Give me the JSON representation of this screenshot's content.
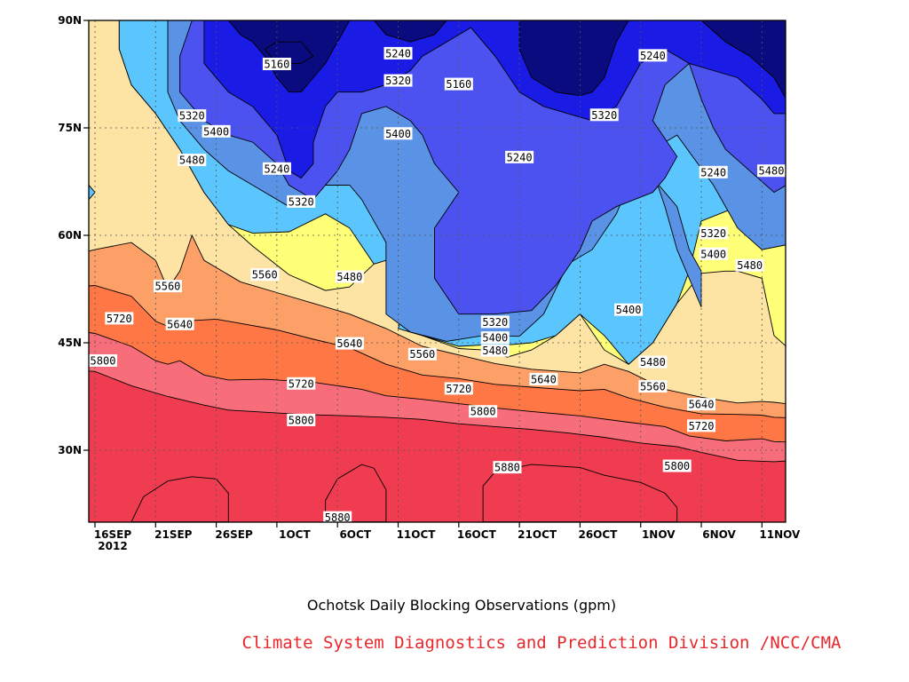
{
  "chart_data": {
    "type": "contour",
    "title": "",
    "xlabel": "Ochotsk Daily Blocking Observations (gpm)",
    "credit": "Climate System Diagnostics and Prediction Division /NCC/CMA",
    "x_ticks": [
      "16SEP",
      "21SEP",
      "26SEP",
      "1OCT",
      "6OCT",
      "11OCT",
      "16OCT",
      "21OCT",
      "26OCT",
      "1NOV",
      "6NOV",
      "11NOV"
    ],
    "x_tick_year": "2012",
    "x_range": [
      "2012-09-16",
      "2012-11-11"
    ],
    "y_ticks": [
      "90N",
      "75N",
      "60N",
      "45N",
      "30N"
    ],
    "y_tick_values": [
      90,
      75,
      60,
      45,
      30
    ],
    "y_range": [
      20,
      90
    ],
    "grid": true,
    "levels": [
      5160,
      5240,
      5320,
      5400,
      5480,
      5560,
      5640,
      5720,
      5800,
      5880
    ],
    "level_colors": {
      "above_5880": "#f03c50",
      "5800_5880": "#f76e7a",
      "5720_5800": "#ff7744",
      "5640_5720": "#fda068",
      "5560_5640": "#fde4a4",
      "5480_5560": "#ffff78",
      "5400_5480": "#5bc5fd",
      "5320_5400": "#5a92e6",
      "5240_5320": "#4c52f0",
      "5160_5240": "#1b1be6",
      "below_5160": "#0b0b80"
    },
    "contour_labels": [
      {
        "text": "5160",
        "date": "2012-10-01",
        "lat": 83.8
      },
      {
        "text": "5240",
        "date": "2012-10-11",
        "lat": 85.3
      },
      {
        "text": "5320",
        "date": "2012-10-11",
        "lat": 81.5
      },
      {
        "text": "5160",
        "date": "2012-10-16",
        "lat": 81.0
      },
      {
        "text": "5240",
        "date": "2012-11-01",
        "lat": 85.0
      },
      {
        "text": "5320",
        "date": "2012-09-24",
        "lat": 76.6
      },
      {
        "text": "5400",
        "date": "2012-09-26",
        "lat": 74.4
      },
      {
        "text": "5320",
        "date": "2012-10-28",
        "lat": 76.7
      },
      {
        "text": "5400",
        "date": "2012-10-11",
        "lat": 74.1
      },
      {
        "text": "5480",
        "date": "2012-09-24",
        "lat": 70.4
      },
      {
        "text": "5240",
        "date": "2012-10-01",
        "lat": 69.2
      },
      {
        "text": "5240",
        "date": "2012-10-21",
        "lat": 70.8
      },
      {
        "text": "5240",
        "date": "2012-11-06",
        "lat": 68.7
      },
      {
        "text": "5480",
        "date": "2012-11-11",
        "lat": 68.9
      },
      {
        "text": "5320",
        "date": "2012-10-03",
        "lat": 64.6
      },
      {
        "text": "5320",
        "date": "2012-11-06",
        "lat": 60.2
      },
      {
        "text": "5400",
        "date": "2012-11-06",
        "lat": 57.3
      },
      {
        "text": "5480",
        "date": "2012-11-09",
        "lat": 55.7
      },
      {
        "text": "5560",
        "date": "2012-09-22",
        "lat": 52.8
      },
      {
        "text": "5560",
        "date": "2012-09-30",
        "lat": 54.4
      },
      {
        "text": "5480",
        "date": "2012-10-07",
        "lat": 54.1
      },
      {
        "text": "5400",
        "date": "2012-10-30",
        "lat": 49.5
      },
      {
        "text": "5720",
        "date": "2012-09-18",
        "lat": 48.3
      },
      {
        "text": "5640",
        "date": "2012-09-23",
        "lat": 47.5
      },
      {
        "text": "5320",
        "date": "2012-10-19",
        "lat": 47.8
      },
      {
        "text": "5400",
        "date": "2012-10-19",
        "lat": 45.6
      },
      {
        "text": "5640",
        "date": "2012-10-07",
        "lat": 44.8
      },
      {
        "text": "5480",
        "date": "2012-10-19",
        "lat": 43.8
      },
      {
        "text": "5560",
        "date": "2012-10-13",
        "lat": 43.3
      },
      {
        "text": "5800",
        "date": "2012-09-16",
        "lat": 42.4
      },
      {
        "text": "5480",
        "date": "2012-11-01",
        "lat": 42.2
      },
      {
        "text": "5640",
        "date": "2012-10-23",
        "lat": 39.8
      },
      {
        "text": "5720",
        "date": "2012-10-03",
        "lat": 39.2
      },
      {
        "text": "5720",
        "date": "2012-10-16",
        "lat": 38.5
      },
      {
        "text": "5560",
        "date": "2012-11-01",
        "lat": 38.8
      },
      {
        "text": "5640",
        "date": "2012-11-05",
        "lat": 36.3
      },
      {
        "text": "5800",
        "date": "2012-10-18",
        "lat": 35.3
      },
      {
        "text": "5800",
        "date": "2012-10-03",
        "lat": 34.1
      },
      {
        "text": "5720",
        "date": "2012-11-05",
        "lat": 33.3
      },
      {
        "text": "5880",
        "date": "2012-10-20",
        "lat": 27.5
      },
      {
        "text": "5800",
        "date": "2012-11-03",
        "lat": 27.7
      },
      {
        "text": "5880",
        "date": "2012-10-06",
        "lat": 20.5
      }
    ]
  },
  "captions": {
    "main": "Ochotsk Daily Blocking Observations (gpm)",
    "credit": "Climate System Diagnostics and Prediction Division /NCC/CMA"
  }
}
